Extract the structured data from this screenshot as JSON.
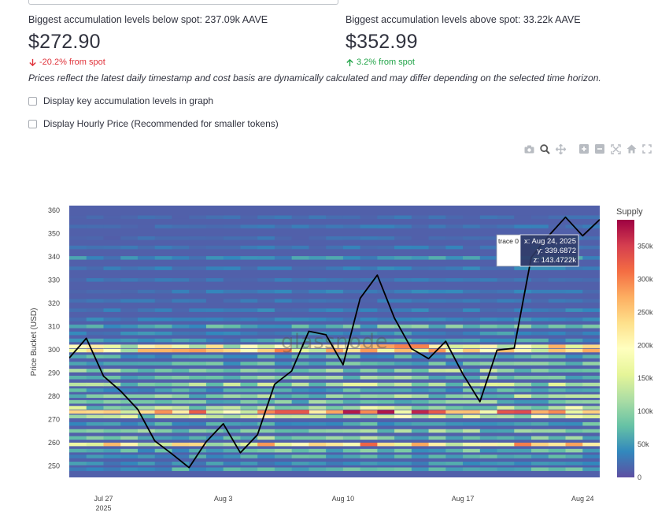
{
  "metrics": {
    "below": {
      "label": "Biggest accumulation levels below spot: 237.09k AAVE",
      "value": "$272.90",
      "delta": "-20.2% from spot"
    },
    "above": {
      "label": "Biggest accumulation levels above spot: 33.22k AAVE",
      "value": "$352.99",
      "delta": "3.2% from spot"
    }
  },
  "note": "Prices reflect the latest daily timestamp and cost basis are dynamically calculated and may differ depending on the selected time horizon.",
  "options": {
    "key_levels_label": "Display key accumulation levels in graph",
    "key_levels_checked": false,
    "hourly_label": "Display Hourly Price (Recommended for smaller tokens)",
    "hourly_checked": false
  },
  "modebar_icons": [
    "camera-icon",
    "zoom-icon",
    "pan-icon",
    "zoom-in-icon",
    "zoom-out-icon",
    "autoscale-icon",
    "home-icon",
    "fullscreen-icon"
  ],
  "colors": {
    "line": "#000000",
    "delta_down": "#e0323a",
    "delta_up": "#21a448",
    "colorscale": [
      "#5e4fa2",
      "#3288bd",
      "#66c2a5",
      "#abdda4",
      "#e6f598",
      "#ffffbf",
      "#fee08b",
      "#fdae61",
      "#f46d43",
      "#d53e4f",
      "#9e0142"
    ]
  },
  "chart_data": {
    "type": "heatmap",
    "watermark": "glassnode",
    "ylabel": "Price Bucket (USD)",
    "colorbar_title": "Supply",
    "colorbar_range": [
      0,
      390000
    ],
    "colorbar_ticks": [
      "0",
      "50k",
      "100k",
      "150k",
      "200k",
      "250k",
      "300k",
      "350k"
    ],
    "colorbar_tick_values": [
      0,
      50000,
      100000,
      150000,
      200000,
      250000,
      300000,
      350000
    ],
    "ylim": [
      245,
      362
    ],
    "y_ticks": [
      250,
      260,
      270,
      280,
      290,
      300,
      310,
      320,
      330,
      340,
      350,
      360
    ],
    "x_range": [
      "2025-07-25",
      "2025-08-25"
    ],
    "x_ticks": [
      {
        "date": "2025-07-27",
        "label": "Jul 27",
        "sub": "2025"
      },
      {
        "date": "2025-08-03",
        "label": "Aug 3",
        "sub": ""
      },
      {
        "date": "2025-08-10",
        "label": "Aug 10",
        "sub": ""
      },
      {
        "date": "2025-08-17",
        "label": "Aug 17",
        "sub": ""
      },
      {
        "date": "2025-08-24",
        "label": "Aug 24",
        "sub": ""
      }
    ],
    "price_line": {
      "name": "trace 0",
      "x": [
        "2025-07-25",
        "2025-07-26",
        "2025-07-27",
        "2025-07-28",
        "2025-07-29",
        "2025-07-30",
        "2025-07-31",
        "2025-08-01",
        "2025-08-02",
        "2025-08-03",
        "2025-08-04",
        "2025-08-05",
        "2025-08-06",
        "2025-08-07",
        "2025-08-08",
        "2025-08-09",
        "2025-08-10",
        "2025-08-11",
        "2025-08-12",
        "2025-08-13",
        "2025-08-14",
        "2025-08-15",
        "2025-08-16",
        "2025-08-17",
        "2025-08-18",
        "2025-08-19",
        "2025-08-20",
        "2025-08-21",
        "2025-08-22",
        "2025-08-23",
        "2025-08-24",
        "2025-08-25"
      ],
      "y": [
        296.4,
        304.9,
        288.6,
        282.2,
        274.3,
        260.7,
        255.1,
        249.2,
        260.3,
        268.1,
        255.6,
        263.4,
        285.1,
        290.8,
        307.9,
        306.4,
        293.5,
        322.1,
        332.1,
        313.6,
        300.4,
        296.1,
        303.6,
        289.5,
        277.6,
        299.8,
        300.6,
        339.7,
        348.9,
        357.0,
        349.0,
        356.0
      ]
    },
    "heat_bands": [
      {
        "y": 248.5,
        "intensity": 60000
      },
      {
        "y": 251.0,
        "intensity": 45000
      },
      {
        "y": 254.0,
        "intensity": 55000
      },
      {
        "y": 256.5,
        "intensity": 70000
      },
      {
        "y": 259.2,
        "intensity": 210000
      },
      {
        "y": 262.0,
        "intensity": 85000
      },
      {
        "y": 265.0,
        "intensity": 90000
      },
      {
        "y": 268.0,
        "intensity": 60000
      },
      {
        "y": 271.2,
        "intensity": 140000
      },
      {
        "y": 273.2,
        "intensity": 260000
      },
      {
        "y": 275.0,
        "intensity": 120000
      },
      {
        "y": 277.5,
        "intensity": 80000
      },
      {
        "y": 280.0,
        "intensity": 95000
      },
      {
        "y": 282.5,
        "intensity": 60000
      },
      {
        "y": 285.0,
        "intensity": 110000
      },
      {
        "y": 288.0,
        "intensity": 80000
      },
      {
        "y": 291.0,
        "intensity": 95000
      },
      {
        "y": 294.0,
        "intensity": 70000
      },
      {
        "y": 297.0,
        "intensity": 60000
      },
      {
        "y": 299.6,
        "intensity": 220000
      },
      {
        "y": 301.4,
        "intensity": 180000
      },
      {
        "y": 304.0,
        "intensity": 50000
      },
      {
        "y": 307.0,
        "intensity": 40000
      },
      {
        "y": 310.0,
        "intensity": 70000
      },
      {
        "y": 313.0,
        "intensity": 35000
      },
      {
        "y": 317.0,
        "intensity": 30000
      },
      {
        "y": 321.0,
        "intensity": 25000
      },
      {
        "y": 325.0,
        "intensity": 30000
      },
      {
        "y": 330.0,
        "intensity": 25000
      },
      {
        "y": 335.0,
        "intensity": 30000
      },
      {
        "y": 339.5,
        "intensity": 45000
      },
      {
        "y": 344.0,
        "intensity": 25000
      },
      {
        "y": 348.0,
        "intensity": 20000
      },
      {
        "y": 353.0,
        "intensity": 25000
      },
      {
        "y": 357.0,
        "intensity": 20000
      }
    ],
    "hover": {
      "name": "trace 0",
      "x": "x: Aug 24, 2025",
      "y": "y: 339.6872",
      "z": "z: 143.4722k"
    }
  }
}
